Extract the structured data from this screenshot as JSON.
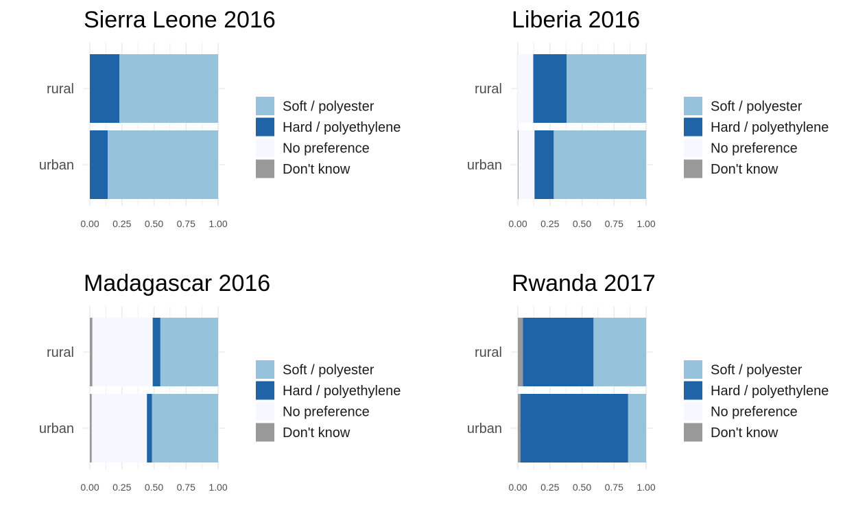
{
  "colors": {
    "soft": "#96c2db",
    "hard": "#2064a8",
    "nopref": "#f7f7ff",
    "dontknow": "#999999",
    "grid": "#ebebeb"
  },
  "legend": [
    {
      "key": "soft",
      "label": "Soft / polyester"
    },
    {
      "key": "hard",
      "label": "Hard / polyethylene"
    },
    {
      "key": "nopref",
      "label": "No preference"
    },
    {
      "key": "dontknow",
      "label": "Don't know"
    }
  ],
  "chart_data": [
    {
      "type": "bar",
      "orientation": "horizontal",
      "stacked": true,
      "title": "Sierra Leone 2016",
      "categories": [
        "rural",
        "urban"
      ],
      "xlim": [
        0,
        1
      ],
      "xticks": [
        "0.00",
        "0.25",
        "0.50",
        "0.75",
        "1.00"
      ],
      "series": [
        {
          "name": "Don't know",
          "key": "dontknow",
          "values": [
            0.0,
            0.0
          ]
        },
        {
          "name": "No preference",
          "key": "nopref",
          "values": [
            0.0,
            0.0
          ]
        },
        {
          "name": "Hard / polyethylene",
          "key": "hard",
          "values": [
            0.23,
            0.14
          ]
        },
        {
          "name": "Soft / polyester",
          "key": "soft",
          "values": [
            0.77,
            0.86
          ]
        }
      ]
    },
    {
      "type": "bar",
      "orientation": "horizontal",
      "stacked": true,
      "title": "Liberia 2016",
      "categories": [
        "rural",
        "urban"
      ],
      "xlim": [
        0,
        1
      ],
      "xticks": [
        "0.00",
        "0.25",
        "0.50",
        "0.75",
        "1.00"
      ],
      "series": [
        {
          "name": "Don't know",
          "key": "dontknow",
          "values": [
            0.0,
            0.005
          ]
        },
        {
          "name": "No preference",
          "key": "nopref",
          "values": [
            0.12,
            0.125
          ]
        },
        {
          "name": "Hard / polyethylene",
          "key": "hard",
          "values": [
            0.26,
            0.15
          ]
        },
        {
          "name": "Soft / polyester",
          "key": "soft",
          "values": [
            0.62,
            0.72
          ]
        }
      ]
    },
    {
      "type": "bar",
      "orientation": "horizontal",
      "stacked": true,
      "title": "Madagascar 2016",
      "categories": [
        "rural",
        "urban"
      ],
      "xlim": [
        0,
        1
      ],
      "xticks": [
        "0.00",
        "0.25",
        "0.50",
        "0.75",
        "1.00"
      ],
      "series": [
        {
          "name": "Don't know",
          "key": "dontknow",
          "values": [
            0.02,
            0.015
          ]
        },
        {
          "name": "No preference",
          "key": "nopref",
          "values": [
            0.47,
            0.43
          ]
        },
        {
          "name": "Hard / polyethylene",
          "key": "hard",
          "values": [
            0.06,
            0.04
          ]
        },
        {
          "name": "Soft / polyester",
          "key": "soft",
          "values": [
            0.45,
            0.515
          ]
        }
      ]
    },
    {
      "type": "bar",
      "orientation": "horizontal",
      "stacked": true,
      "title": "Rwanda 2017",
      "categories": [
        "rural",
        "urban"
      ],
      "xlim": [
        0,
        1
      ],
      "xticks": [
        "0.00",
        "0.25",
        "0.50",
        "0.75",
        "1.00"
      ],
      "series": [
        {
          "name": "Don't know",
          "key": "dontknow",
          "values": [
            0.04,
            0.02
          ]
        },
        {
          "name": "No preference",
          "key": "nopref",
          "values": [
            0.0,
            0.0
          ]
        },
        {
          "name": "Hard / polyethylene",
          "key": "hard",
          "values": [
            0.55,
            0.84
          ]
        },
        {
          "name": "Soft / polyester",
          "key": "soft",
          "values": [
            0.41,
            0.14
          ]
        }
      ]
    }
  ]
}
